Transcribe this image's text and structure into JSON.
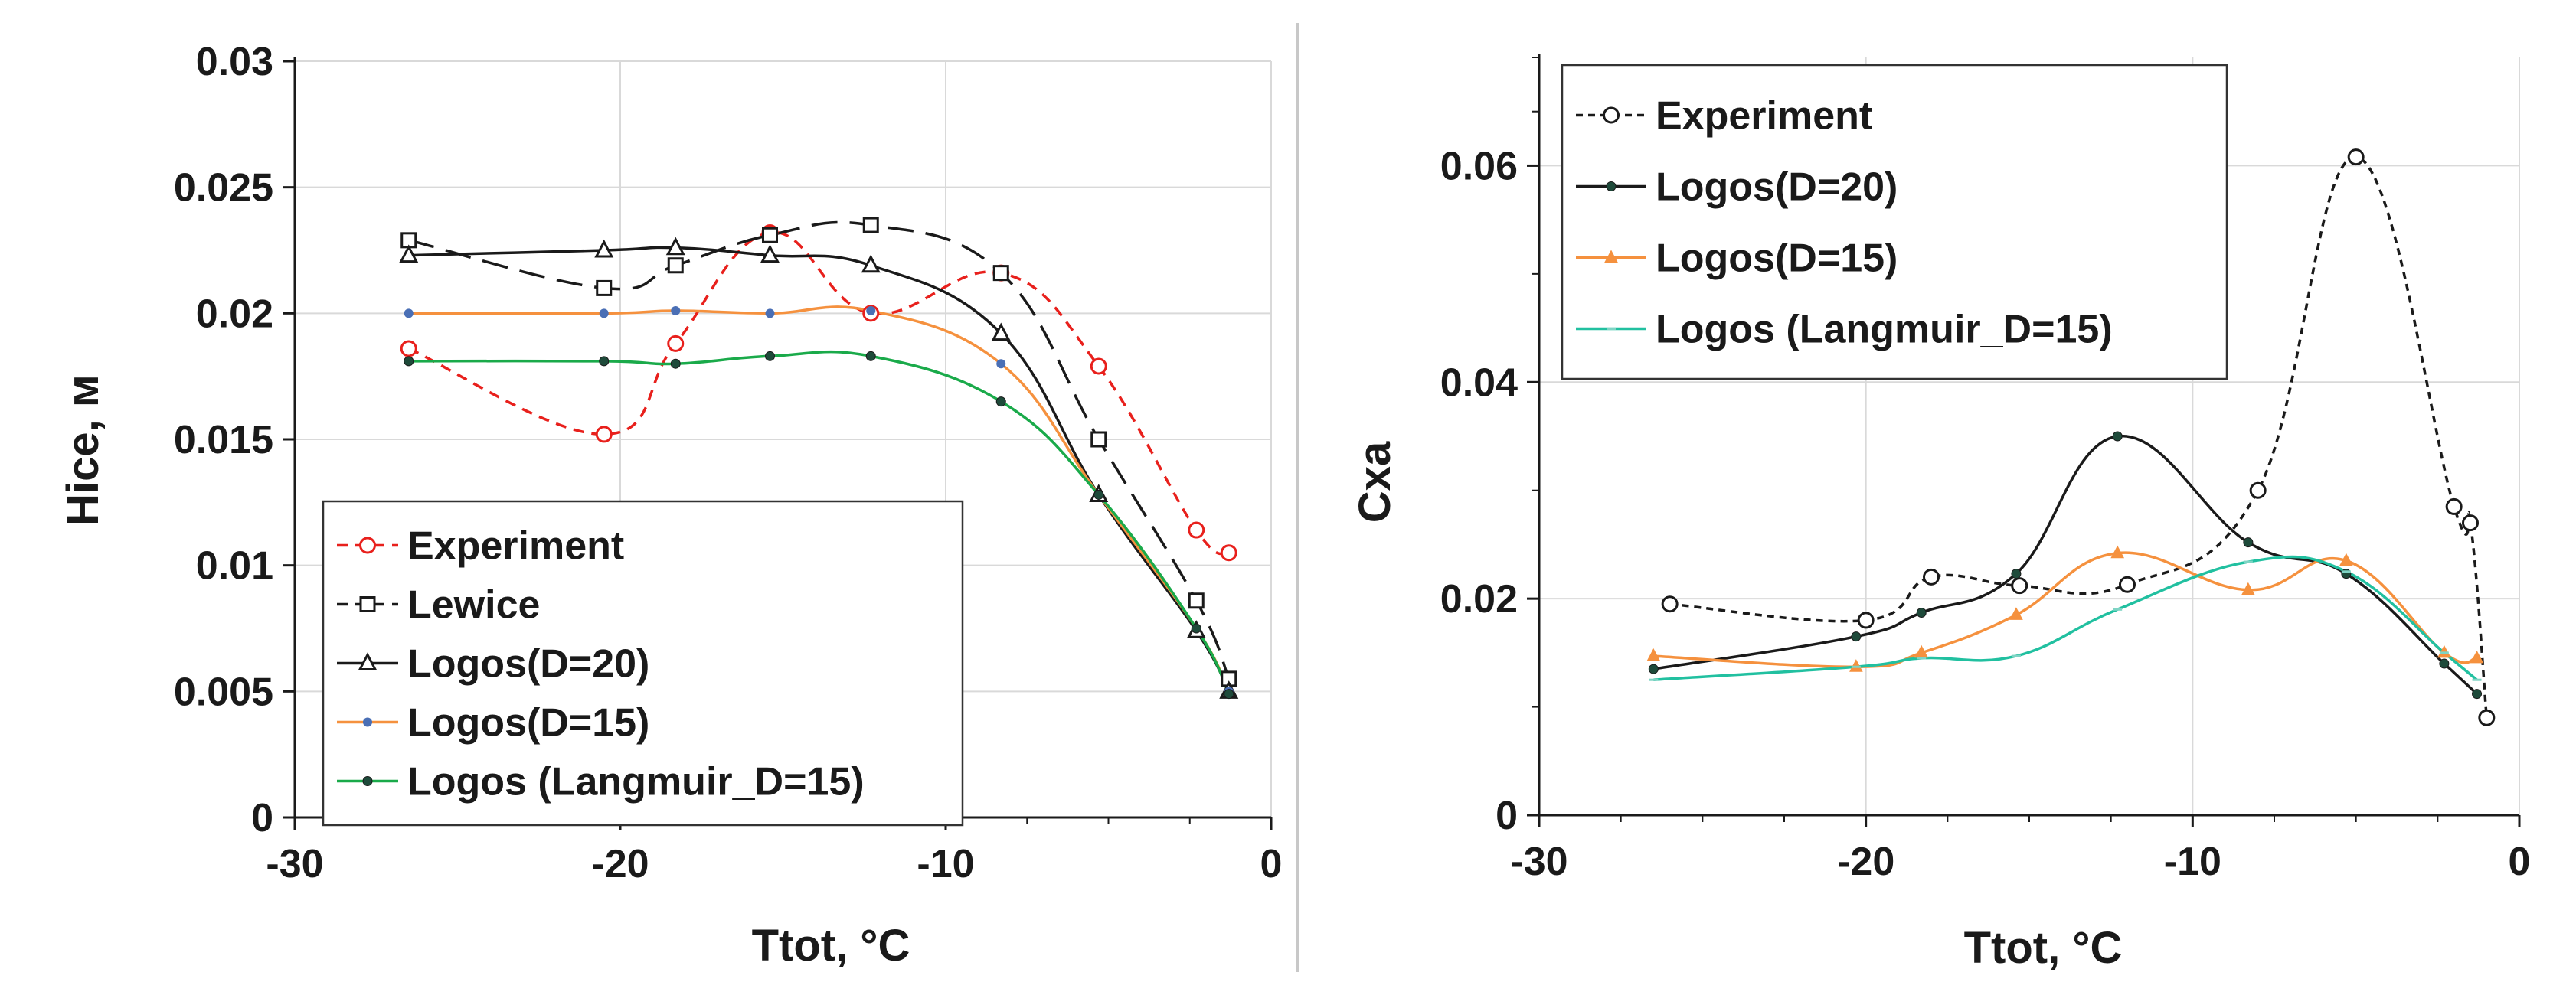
{
  "chart_data": [
    {
      "id": "left",
      "type": "line",
      "title": "",
      "xlabel": "Ttot, °C",
      "ylabel": "Hice, м",
      "xlim": [
        -30,
        0
      ],
      "ylim": [
        0,
        0.03
      ],
      "xticks": [
        -30,
        -20,
        -10,
        0
      ],
      "xtick_labels": [
        "-30",
        "-20",
        "-10",
        "0"
      ],
      "yticks": [
        0,
        0.005,
        0.01,
        0.015,
        0.02,
        0.025,
        0.03
      ],
      "ytick_labels": [
        "0",
        "0.005",
        "0.01",
        "0.015",
        "0.02",
        "0.025",
        "0.03"
      ],
      "grid": true,
      "legend_position": "bottom-left",
      "series": [
        {
          "name": "Experiment",
          "color": "#e8201c",
          "dash": "dashed",
          "marker": "circle-open",
          "x": [
            -26.5,
            -20.5,
            -18.3,
            -15.4,
            -12.3,
            -8.3,
            -5.3,
            -2.3,
            -1.3
          ],
          "y": [
            0.0186,
            0.0152,
            0.0188,
            0.0232,
            0.02,
            0.0216,
            0.0179,
            0.0114,
            0.0105
          ]
        },
        {
          "name": "Lewice",
          "color": "#1a1a1a",
          "dash": "longdash",
          "marker": "square-open",
          "x": [
            -26.5,
            -20.5,
            -18.3,
            -15.4,
            -12.3,
            -8.3,
            -5.3,
            -2.3,
            -1.3
          ],
          "y": [
            0.0229,
            0.021,
            0.0219,
            0.0231,
            0.0235,
            0.0216,
            0.015,
            0.0086,
            0.0055
          ]
        },
        {
          "name": "Logos(D=20)",
          "color": "#1a1a1a",
          "dash": "solid",
          "marker": "triangle-open",
          "x": [
            -26.5,
            -20.5,
            -18.3,
            -15.4,
            -12.3,
            -8.3,
            -5.3,
            -2.3,
            -1.3
          ],
          "y": [
            0.0223,
            0.0225,
            0.0226,
            0.0223,
            0.0219,
            0.0192,
            0.0128,
            0.0074,
            0.005
          ]
        },
        {
          "name": "Logos(D=15)",
          "color": "#f5913e",
          "dash": "solid",
          "marker": "dot-blue",
          "x": [
            -26.5,
            -20.5,
            -18.3,
            -15.4,
            -12.3,
            -8.3,
            -5.3,
            -2.3,
            -1.3
          ],
          "y": [
            0.02,
            0.02,
            0.0201,
            0.02,
            0.0201,
            0.018,
            0.0128,
            0.0075,
            0.005
          ]
        },
        {
          "name": "Logos (Langmuir_D=15)",
          "color": "#1aaa4a",
          "dash": "solid",
          "marker": "dot-dark",
          "x": [
            -26.5,
            -20.5,
            -18.3,
            -15.4,
            -12.3,
            -8.3,
            -5.3,
            -2.3,
            -1.3
          ],
          "y": [
            0.0181,
            0.0181,
            0.018,
            0.0183,
            0.0183,
            0.0165,
            0.0128,
            0.0075,
            0.0049
          ]
        }
      ]
    },
    {
      "id": "right",
      "type": "line",
      "title": "",
      "xlabel": "Ttot, °C",
      "ylabel": "Cxa",
      "xlim": [
        -30,
        0
      ],
      "ylim": [
        0,
        0.07
      ],
      "xticks": [
        -30,
        -20,
        -10,
        0
      ],
      "xtick_labels": [
        "-30",
        "-20",
        "-10",
        "0"
      ],
      "yticks": [
        0,
        0.02,
        0.04,
        0.06
      ],
      "ytick_labels": [
        "0",
        "0.02",
        "0.04",
        "0.06"
      ],
      "grid": true,
      "legend_position": "top-left",
      "series": [
        {
          "name": "Experiment",
          "color": "#1a1a1a",
          "dash": "dotted",
          "marker": "circle-open",
          "x": [
            -26,
            -20,
            -18,
            -15.3,
            -12,
            -8,
            -5,
            -2,
            -1.5,
            -1
          ],
          "y": [
            0.0195,
            0.018,
            0.022,
            0.0212,
            0.0213,
            0.03,
            0.0608,
            0.0285,
            0.027,
            0.009
          ]
        },
        {
          "name": "Logos(D=20)",
          "color": "#1a1a1a",
          "dash": "solid",
          "marker": "dot-dark",
          "x": [
            -26.5,
            -20.3,
            -18.3,
            -15.4,
            -12.3,
            -8.3,
            -5.3,
            -2.3,
            -1.3
          ],
          "y": [
            0.0135,
            0.0165,
            0.0187,
            0.0223,
            0.035,
            0.0252,
            0.0223,
            0.014,
            0.0112
          ]
        },
        {
          "name": "Logos(D=15)",
          "color": "#f5913e",
          "dash": "solid",
          "marker": "triangle-filled",
          "x": [
            -26.5,
            -20.3,
            -18.3,
            -15.4,
            -12.3,
            -8.3,
            -5.3,
            -2.3,
            -1.3
          ],
          "y": [
            0.0147,
            0.0137,
            0.015,
            0.0185,
            0.0242,
            0.0208,
            0.0235,
            0.015,
            0.0145
          ]
        },
        {
          "name": "Logos (Langmuir_D=15)",
          "color": "#21c0a0",
          "dash": "solid",
          "marker": "dash",
          "x": [
            -26.5,
            -20.3,
            -18.3,
            -15.4,
            -12.3,
            -8.3,
            -5.3,
            -2.3,
            -1.3
          ],
          "y": [
            0.0125,
            0.0137,
            0.0145,
            0.0147,
            0.019,
            0.0234,
            0.0225,
            0.015,
            0.0125
          ]
        }
      ]
    }
  ]
}
